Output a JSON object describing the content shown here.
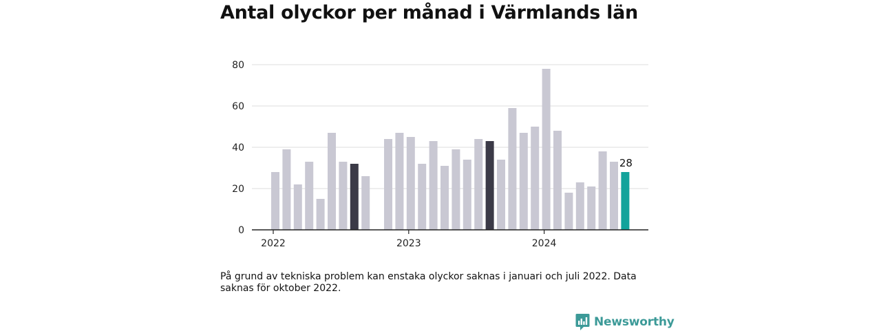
{
  "title": "Antal olyckor per månad i Värmlands län",
  "note": "På grund av tekniska problem kan enstaka olyckor saknas i januari och juli 2022. Data saknas för oktober 2022.",
  "brand": {
    "name": "Newsworthy",
    "icon": "newsworthy-logo-icon",
    "color": "#3c9a98"
  },
  "chart_data": {
    "type": "bar",
    "title": "Antal olyckor per månad i Värmlands län",
    "xlabel": "",
    "ylabel": "",
    "ylim": [
      0,
      80
    ],
    "yticks": [
      0,
      20,
      40,
      60,
      80
    ],
    "xticks": [
      {
        "label": "2022",
        "at": "2022-01"
      },
      {
        "label": "2023",
        "at": "2023-01"
      },
      {
        "label": "2024",
        "at": "2024-01"
      }
    ],
    "grid": true,
    "colors": {
      "default": "#c9c8d3",
      "highlight": "#3b3a47",
      "latest": "#13a39b"
    },
    "highlight_categories": [
      "2022-08",
      "2023-08"
    ],
    "latest_category": "2024-08",
    "data_labels": [
      {
        "category": "2024-08",
        "text": "28"
      }
    ],
    "categories": [
      "2022-01",
      "2022-02",
      "2022-03",
      "2022-04",
      "2022-05",
      "2022-06",
      "2022-07",
      "2022-08",
      "2022-09",
      "2022-10",
      "2022-11",
      "2022-12",
      "2023-01",
      "2023-02",
      "2023-03",
      "2023-04",
      "2023-05",
      "2023-06",
      "2023-07",
      "2023-08",
      "2023-09",
      "2023-10",
      "2023-11",
      "2023-12",
      "2024-01",
      "2024-02",
      "2024-03",
      "2024-04",
      "2024-05",
      "2024-06",
      "2024-07",
      "2024-08"
    ],
    "values": [
      28,
      39,
      22,
      33,
      15,
      47,
      33,
      32,
      26,
      null,
      44,
      47,
      45,
      32,
      43,
      31,
      39,
      34,
      44,
      43,
      34,
      59,
      47,
      50,
      78,
      48,
      18,
      23,
      21,
      38,
      33,
      28
    ]
  }
}
